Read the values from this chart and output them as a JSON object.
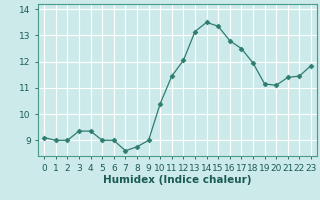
{
  "x": [
    0,
    1,
    2,
    3,
    4,
    5,
    6,
    7,
    8,
    9,
    10,
    11,
    12,
    13,
    14,
    15,
    16,
    17,
    18,
    19,
    20,
    21,
    22,
    23
  ],
  "y": [
    9.1,
    9.0,
    9.0,
    9.35,
    9.35,
    9.0,
    9.0,
    8.6,
    8.75,
    9.0,
    10.4,
    11.45,
    12.05,
    13.15,
    13.5,
    13.35,
    12.8,
    12.5,
    11.95,
    11.15,
    11.1,
    11.4,
    11.45,
    11.85
  ],
  "line_color": "#2e7d6e",
  "marker": "D",
  "marker_size": 2.5,
  "bg_color": "#cdeaea",
  "grid_color": "#ffffff",
  "xlabel": "Humidex (Indice chaleur)",
  "xlim": [
    -0.5,
    23.5
  ],
  "ylim": [
    8.4,
    14.2
  ],
  "yticks": [
    9,
    10,
    11,
    12,
    13,
    14
  ],
  "xlabel_fontsize": 7.5,
  "tick_fontsize": 6.5,
  "spine_color": "#4a9a8a",
  "tick_color": "#1a5c52"
}
